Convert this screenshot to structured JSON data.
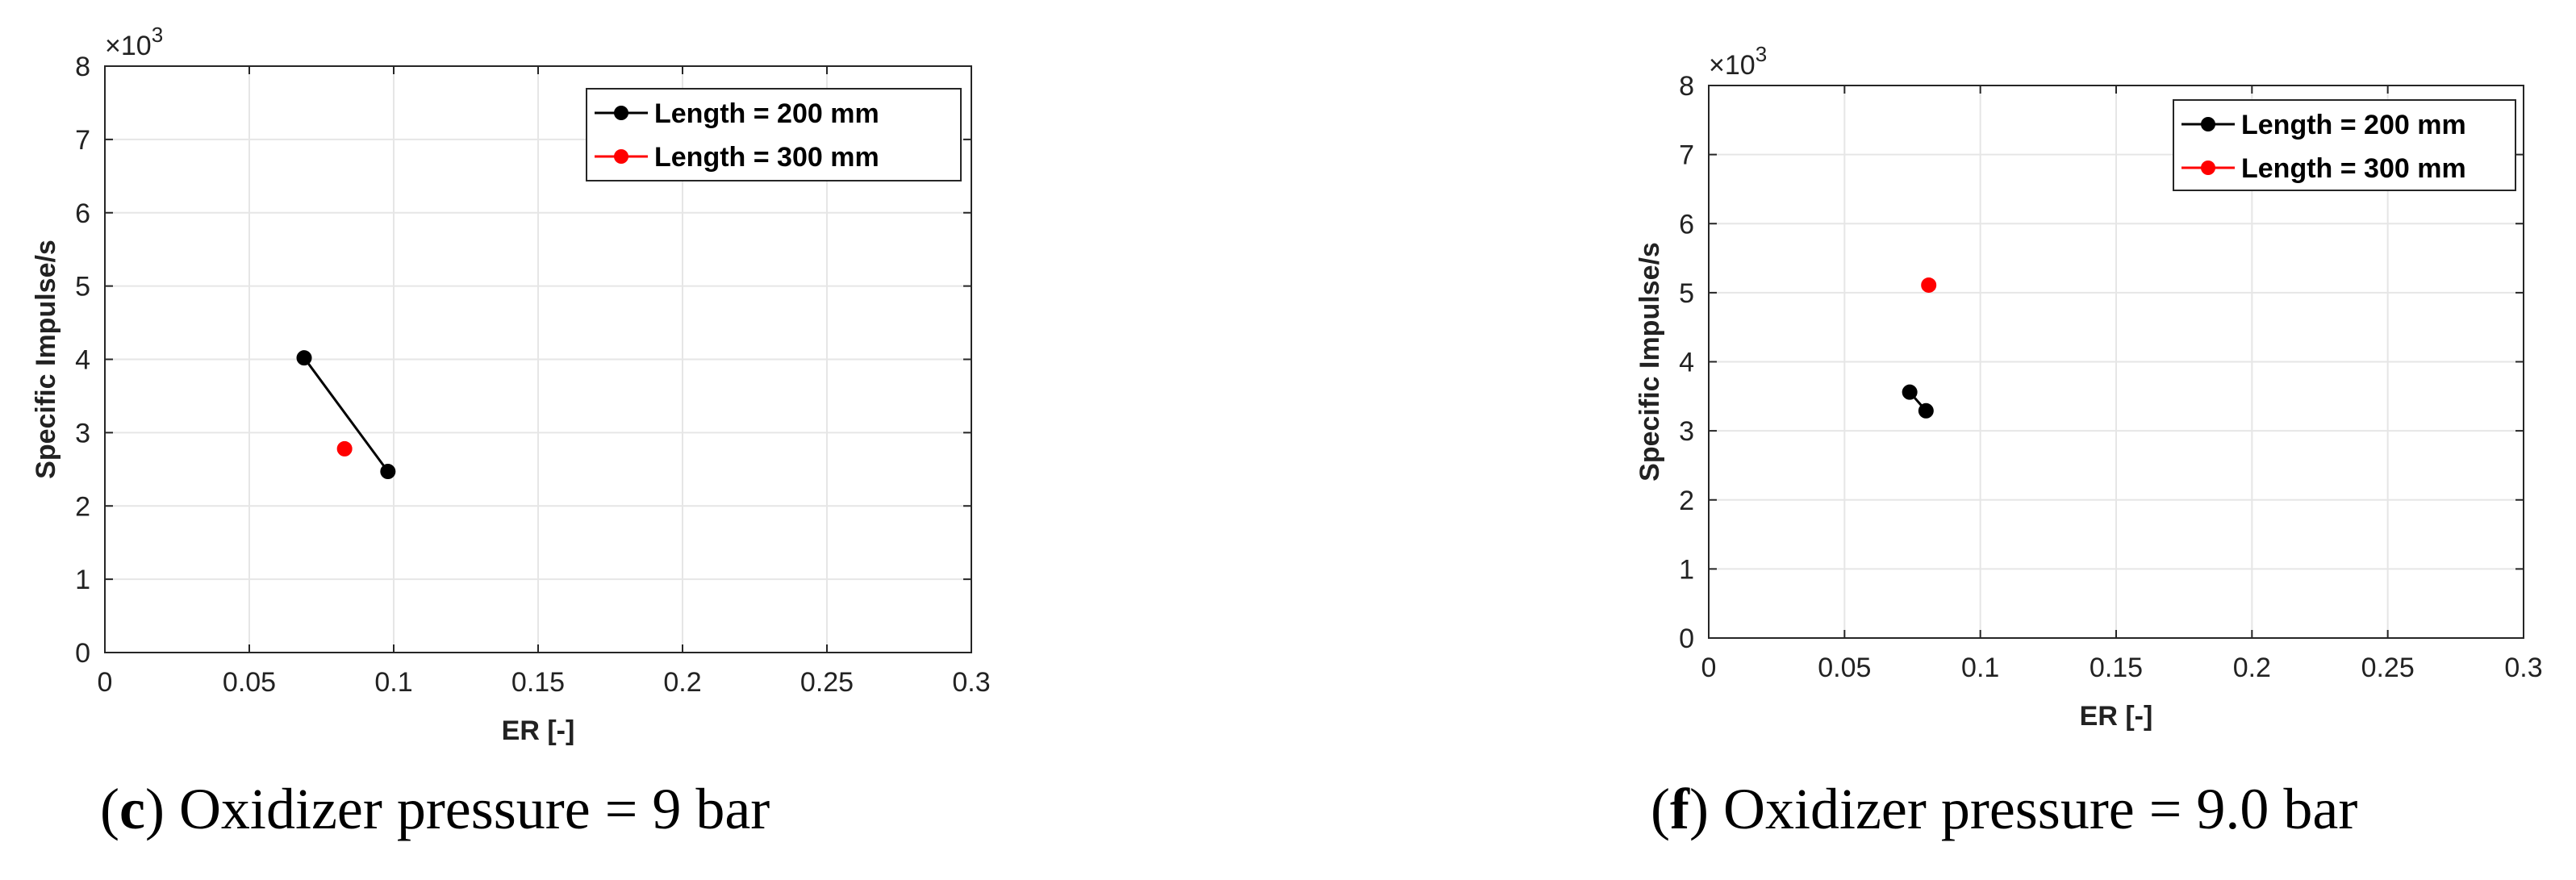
{
  "chart_data": [
    {
      "type": "line",
      "xlabel": "ER [-]",
      "ylabel": "Specific Impulse/s",
      "y_multiplier_label": "×10",
      "y_multiplier_exp": "3",
      "xlim": [
        0,
        0.3
      ],
      "ylim": [
        0,
        8
      ],
      "x_ticks": [
        "0",
        "0.05",
        "0.1",
        "0.15",
        "0.2",
        "0.25",
        "0.3"
      ],
      "y_ticks": [
        "0",
        "1",
        "2",
        "3",
        "4",
        "5",
        "6",
        "7",
        "8"
      ],
      "grid": true,
      "legend_position": "top-right",
      "series": [
        {
          "name": "Length = 200 mm",
          "color": "#000000",
          "x": [
            0.069,
            0.098
          ],
          "y": [
            4.02,
            2.47
          ],
          "connected": true
        },
        {
          "name": "Length = 300 mm",
          "color": "#ff0000",
          "x": [
            0.083
          ],
          "y": [
            2.78
          ],
          "connected": false
        }
      ],
      "caption_letter": "c",
      "caption_text": " Oxidizer pressure = 9 bar"
    },
    {
      "type": "line",
      "xlabel": "ER [-]",
      "ylabel": "Specific Impulse/s",
      "y_multiplier_label": "×10",
      "y_multiplier_exp": "3",
      "xlim": [
        0,
        0.3
      ],
      "ylim": [
        0,
        8
      ],
      "x_ticks": [
        "0",
        "0.05",
        "0.1",
        "0.15",
        "0.2",
        "0.25",
        "0.3"
      ],
      "y_ticks": [
        "0",
        "1",
        "2",
        "3",
        "4",
        "5",
        "6",
        "7",
        "8"
      ],
      "grid": true,
      "legend_position": "top-right",
      "series": [
        {
          "name": "Length = 200 mm",
          "color": "#000000",
          "x": [
            0.074,
            0.08
          ],
          "y": [
            3.56,
            3.29
          ],
          "connected": true
        },
        {
          "name": "Length = 300 mm",
          "color": "#ff0000",
          "x": [
            0.081
          ],
          "y": [
            5.11
          ],
          "connected": false
        }
      ],
      "caption_letter": "f",
      "caption_text": " Oxidizer pressure = 9.0 bar"
    }
  ]
}
